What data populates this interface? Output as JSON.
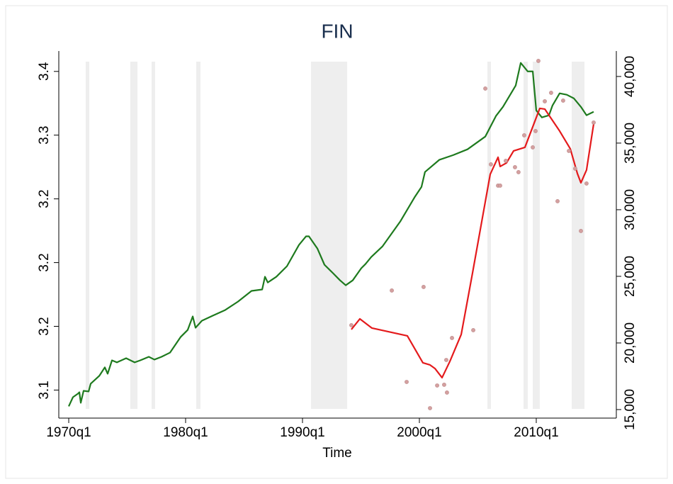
{
  "chart_data": {
    "type": "line",
    "title": "FIN",
    "xlabel": "Time",
    "xlim": [
      1969.15,
      2016.85
    ],
    "xticks": [
      {
        "value": 1970,
        "label": "1970q1"
      },
      {
        "value": 1980,
        "label": "1980q1"
      },
      {
        "value": 1990,
        "label": "1990q1"
      },
      {
        "value": 2000,
        "label": "2000q1"
      },
      {
        "value": 2010,
        "label": "2010q1"
      }
    ],
    "ylim": [
      3.078,
      3.366
    ],
    "yticks": [
      3.1,
      {
        "value": 3.15,
        "label": "3.2"
      },
      3.2,
      {
        "value": 3.25,
        "label": "3.2"
      },
      3.3,
      {
        "value": 3.35,
        "label": "3.4"
      }
    ],
    "y2lim": [
      14360,
      41910
    ],
    "y2ticks": [
      {
        "value": 15000,
        "label": "15,000"
      },
      {
        "value": 20000,
        "label": "20,000"
      },
      {
        "value": 25000,
        "label": "25,000"
      },
      {
        "value": 30000,
        "label": "30,000"
      },
      {
        "value": 35000,
        "label": "35,000"
      },
      {
        "value": 40000,
        "label": "40,000"
      }
    ],
    "shaded": [
      [
        1971.45,
        1971.76
      ],
      [
        1975.27,
        1975.88
      ],
      [
        1977.09,
        1977.39
      ],
      [
        1980.91,
        1981.27
      ],
      [
        1990.73,
        1993.82
      ],
      [
        2005.82,
        2006.12
      ],
      [
        2008.91,
        2009.27
      ],
      [
        2009.7,
        2010.3
      ],
      [
        2013.03,
        2014.12
      ]
    ],
    "shade_color": "#eeeeee",
    "series": [
      {
        "type": "line",
        "color": "#1e7a1e",
        "axis": "y",
        "x": [
          1970.0,
          1970.36,
          1970.79,
          1970.91,
          1971.03,
          1971.27,
          1971.7,
          1971.88,
          1972.61,
          1973.09,
          1973.33,
          1973.7,
          1974.12,
          1974.91,
          1975.64,
          1976.12,
          1976.85,
          1977.33,
          1977.94,
          1978.67,
          1979.58,
          1980.18,
          1980.61,
          1980.85,
          1981.39,
          1982.3,
          1983.39,
          1984.48,
          1985.64,
          1986.55,
          1986.79,
          1987.03,
          1987.76,
          1988.67,
          1989.7,
          1990.3,
          1990.55,
          1991.27,
          1991.88,
          1992.61,
          1993.21,
          1993.7,
          1994.3,
          1995.03,
          1995.39,
          1995.88,
          1996.85,
          1998.36,
          1999.58,
          2000.18,
          2000.48,
          2001.7,
          2002.91,
          2004.12,
          2005.64,
          2006.55,
          2007.15,
          2008.24,
          2008.67,
          2009.27,
          2009.7,
          2010.0,
          2010.48,
          2011.09,
          2011.39,
          2012.0,
          2012.61,
          2013.21,
          2013.82,
          2014.3,
          2014.91
        ],
        "values": [
          3.0872,
          3.0944,
          3.0972,
          3.0983,
          3.09,
          3.0994,
          3.0989,
          3.105,
          3.1111,
          3.1178,
          3.1128,
          3.1233,
          3.1217,
          3.125,
          3.1217,
          3.1233,
          3.1261,
          3.1239,
          3.1261,
          3.1294,
          3.1417,
          3.1472,
          3.1578,
          3.1489,
          3.1544,
          3.1583,
          3.1628,
          3.1694,
          3.1778,
          3.1789,
          3.1889,
          3.1844,
          3.1889,
          3.1972,
          3.2139,
          3.2206,
          3.2206,
          3.2111,
          3.1983,
          3.1917,
          3.1861,
          3.1822,
          3.1861,
          3.1956,
          3.1989,
          3.2044,
          3.2128,
          3.2322,
          3.2511,
          3.2594,
          3.2711,
          3.2806,
          3.2844,
          3.2889,
          3.2989,
          3.315,
          3.3222,
          3.3389,
          3.3567,
          3.35,
          3.35,
          3.3194,
          3.3139,
          3.3156,
          3.3233,
          3.3328,
          3.3317,
          3.3289,
          3.3222,
          3.3156,
          3.3183
        ]
      },
      {
        "type": "line",
        "color": "#e41a1c",
        "axis": "y2",
        "x": [
          1994.18,
          1994.91,
          1995.94,
          1998.97,
          2000.3,
          2000.91,
          2001.33,
          2001.94,
          2002.61,
          2003.58,
          2004.55,
          2006.06,
          2006.73,
          2006.91,
          2007.45,
          2008.06,
          2009.03,
          2010.3,
          2010.73,
          2012.0,
          2012.91,
          2013.52,
          2013.82,
          2014.3,
          2014.91
        ],
        "values": [
          21011,
          21809,
          21117,
          20532,
          18511,
          18351,
          18085,
          17394,
          18617,
          20638,
          25266,
          32660,
          33936,
          33245,
          33511,
          34415,
          34681,
          37606,
          37553,
          35904,
          34574,
          32713,
          32021,
          32979,
          36436
        ]
      },
      {
        "type": "scatter",
        "color": "#d4a0a0",
        "axis": "y2",
        "x": [
          1994.18,
          1997.64,
          2000.36,
          1998.91,
          2001.52,
          2002.12,
          2002.36,
          2000.91,
          2002.3,
          2002.79,
          2004.61,
          2005.64,
          2006.12,
          2006.73,
          2006.91,
          2007.39,
          2008.18,
          2008.48,
          2008.97,
          2009.7,
          2009.94,
          2010.18,
          2010.73,
          2011.27,
          2012.3,
          2012.79,
          2011.82,
          2013.33,
          2013.82,
          2014.3,
          2014.91
        ],
        "values": [
          21330,
          23936,
          24202,
          17074,
          16808,
          16862,
          16277,
          15106,
          18723,
          20372,
          20957,
          39095,
          33404,
          31808,
          31808,
          33670,
          33191,
          32819,
          35585,
          34681,
          35904,
          41169,
          38138,
          38776,
          38191,
          34415,
          30638,
          33085,
          28404,
          31968,
          36542
        ]
      }
    ]
  }
}
